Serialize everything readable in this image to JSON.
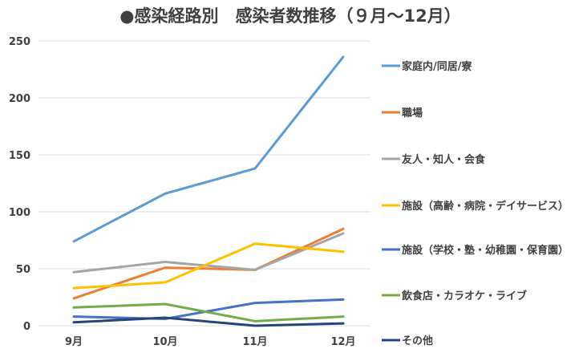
{
  "chart_data": {
    "type": "line",
    "title": "●感染経路別　感染者数推移（９月～12月）",
    "categories": [
      "9月",
      "10月",
      "11月",
      "12月"
    ],
    "ylim": [
      0,
      250
    ],
    "yticks": [
      "0",
      "50",
      "100",
      "150",
      "200",
      "250"
    ],
    "grid": true,
    "legend_position": "right",
    "series": [
      {
        "name": "家庭内/同居/寮",
        "color": "#5b9bd5",
        "values": [
          74,
          116,
          138,
          236
        ]
      },
      {
        "name": "職場",
        "color": "#ed7d31",
        "values": [
          24,
          51,
          49,
          85
        ]
      },
      {
        "name": "友人・知人・会食",
        "color": "#a5a5a5",
        "values": [
          47,
          56,
          49,
          81
        ]
      },
      {
        "name": "施設（高齢・病院・デイサービス）",
        "color": "#ffc000",
        "values": [
          33,
          38,
          72,
          65
        ]
      },
      {
        "name": "施設（学校・塾・幼稚園・保育園）",
        "color": "#4472c4",
        "values": [
          8,
          6,
          20,
          23
        ]
      },
      {
        "name": "飲食店・カラオケ・ライブ",
        "color": "#70ad47",
        "values": [
          16,
          19,
          4,
          8
        ]
      },
      {
        "name": "その他",
        "color": "#264478",
        "values": [
          3,
          7,
          0,
          2
        ]
      }
    ]
  }
}
